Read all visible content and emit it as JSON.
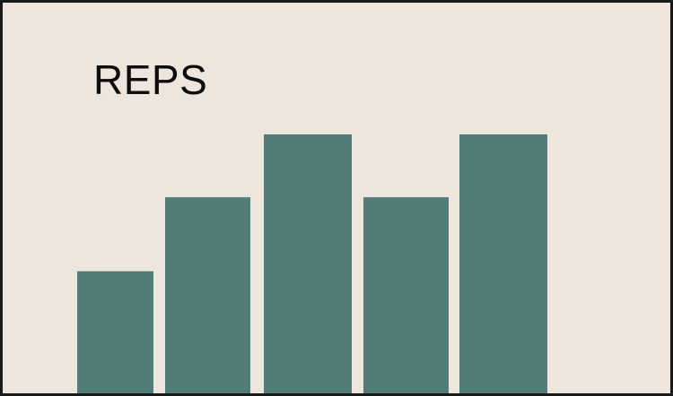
{
  "chart_data": {
    "type": "bar",
    "title": "REPS",
    "xlabel": "",
    "ylabel": "",
    "categories": [
      "",
      "",
      "",
      "",
      ""
    ],
    "values": [
      3.3,
      5.3,
      7.0,
      5.3,
      7.0
    ],
    "ylim": [
      0,
      7
    ],
    "grid": false,
    "legend": "none",
    "colors": {
      "background": "#eee6dd",
      "bar": "#517c78",
      "text": "#0d0d0d",
      "border": "#1a1a1a"
    }
  }
}
